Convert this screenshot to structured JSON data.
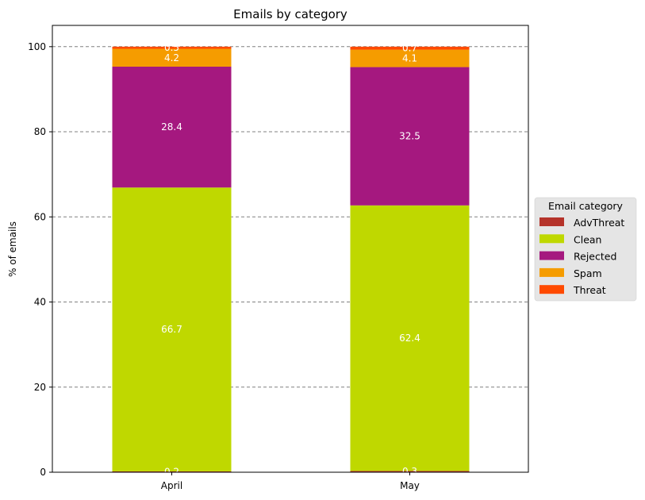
{
  "chart_data": {
    "type": "bar",
    "stacked": true,
    "title": "Emails by category",
    "xlabel": "",
    "ylabel": "% of emails",
    "ylim": [
      0,
      105
    ],
    "yticks": [
      0,
      20,
      40,
      60,
      80,
      100
    ],
    "grid": "horizontal dashed",
    "legend_placement": "right",
    "legend_title": "Email category",
    "categories": [
      "April",
      "May"
    ],
    "series": [
      {
        "name": "AdvThreat",
        "color": "#b5332a",
        "values": [
          0.2,
          0.3
        ],
        "labels": [
          "0.2",
          "0.3"
        ]
      },
      {
        "name": "Clean",
        "color": "#bfd800",
        "values": [
          66.7,
          62.4
        ],
        "labels": [
          "66.7",
          "62.4"
        ]
      },
      {
        "name": "Rejected",
        "color": "#a5187f",
        "values": [
          28.4,
          32.5
        ],
        "labels": [
          "28.4",
          "32.5"
        ]
      },
      {
        "name": "Spam",
        "color": "#f59c00",
        "values": [
          4.2,
          4.1
        ],
        "labels": [
          "4.2",
          "4.1"
        ]
      },
      {
        "name": "Threat",
        "color": "#ff4a00",
        "values": [
          0.5,
          0.7
        ],
        "labels": [
          "0.5",
          "0.7"
        ]
      }
    ]
  }
}
